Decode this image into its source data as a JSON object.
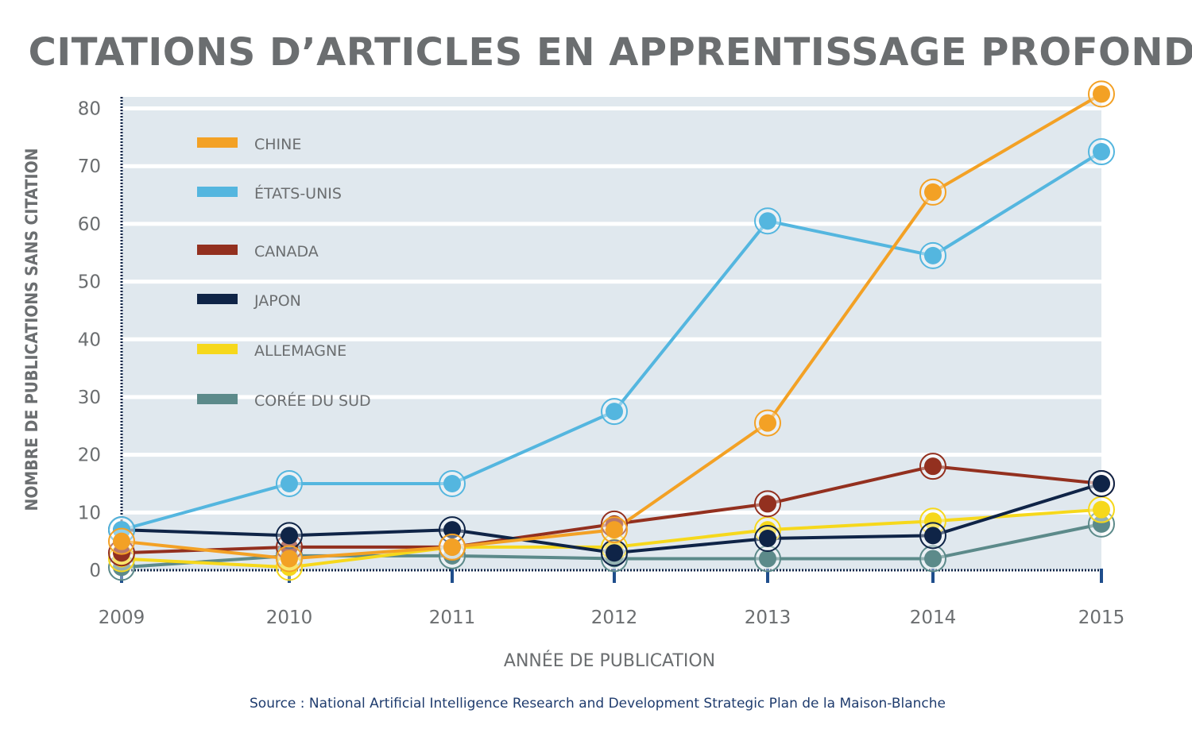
{
  "chart_data": {
    "type": "line",
    "title": "CITATIONS D’ARTICLES EN APPRENTISSAGE PROFOND",
    "xlabel": "ANNÉE DE PUBLICATION",
    "ylabel": "NOMBRE DE PUBLICATIONS SANS CITATION",
    "source": "Source : National Artificial Intelligence Research and Development Strategic Plan de la Maison-Blanche",
    "x": [
      2009,
      2010,
      2011,
      2012,
      2013,
      2014,
      2015
    ],
    "x_tick_labels": [
      "2009",
      "2010",
      "2011",
      "2012",
      "2013",
      "2014",
      "2015"
    ],
    "y_ticks": [
      0,
      10,
      20,
      30,
      40,
      50,
      60,
      70,
      80
    ],
    "y_tick_labels": [
      "0",
      "10",
      "20",
      "30",
      "40",
      "50",
      "60",
      "70",
      "80"
    ],
    "ylim": [
      0,
      82
    ],
    "legend_position": "top-left",
    "series": [
      {
        "name": "CHINE",
        "color": "#f3a125",
        "values": [
          5,
          2,
          4,
          7,
          25.5,
          65.5,
          82.5
        ]
      },
      {
        "name": "ÉTATS-UNIS",
        "color": "#54b6df",
        "values": [
          7,
          15,
          15,
          27.5,
          60.5,
          54.5,
          72.5
        ]
      },
      {
        "name": "CANADA",
        "color": "#93301f",
        "values": [
          3,
          4,
          4,
          8,
          11.5,
          18,
          15
        ]
      },
      {
        "name": "JAPON",
        "color": "#0f2447",
        "values": [
          7,
          6,
          7,
          3,
          5.5,
          6,
          15
        ]
      },
      {
        "name": "ALLEMAGNE",
        "color": "#f6d81c",
        "values": [
          2,
          0.5,
          4,
          4,
          7,
          8.5,
          10.5
        ]
      },
      {
        "name": "CORÉE DU SUD",
        "color": "#5c8a8a",
        "values": [
          0.5,
          2.5,
          2.5,
          2,
          2,
          2,
          8
        ]
      }
    ]
  }
}
